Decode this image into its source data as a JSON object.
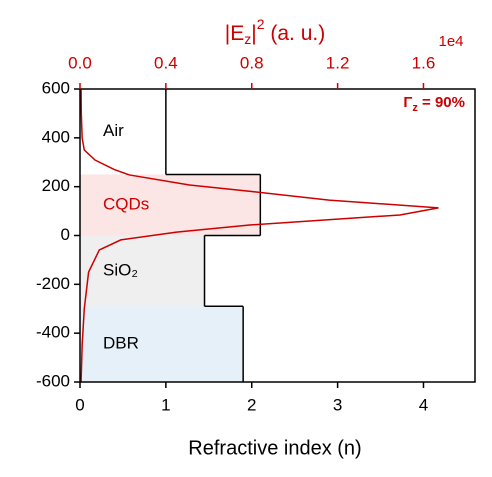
{
  "chart_data": {
    "type": "line",
    "xlabel": "Refractive index (n)",
    "x2label": [
      "|E",
      "z",
      "|",
      "2",
      " (a. u.)"
    ],
    "x2_offset": "1e4",
    "annotation": [
      "Γ",
      "z",
      " = 90%"
    ],
    "xlim": [
      0,
      4.6
    ],
    "xticks": [
      0,
      1,
      2,
      3,
      4
    ],
    "x2lim": [
      0,
      1.84
    ],
    "x2ticks": [
      {
        "value": 0,
        "label": "0.0"
      },
      0.4,
      0.8,
      1.2,
      1.6
    ],
    "ylim": [
      -600,
      600
    ],
    "yticks": [
      -600,
      -400,
      -200,
      0,
      200,
      400,
      600
    ],
    "profile_color": "#000000",
    "layers": [
      {
        "name": "Air",
        "n": 1,
        "range": [
          250,
          600
        ],
        "color": "#ffffff",
        "text_color": "#000000"
      },
      {
        "name": "CQDs",
        "n": 2.1,
        "range": [
          0,
          250
        ],
        "color": "#fbe5e5",
        "text_color": "#cc0000"
      },
      {
        "name": "SiO₂",
        "n": 1.45,
        "range": [
          -290,
          0
        ],
        "color": "#efefef",
        "text_color": "#000000"
      },
      {
        "name": "DBR",
        "n": 1.9,
        "range": [
          -600,
          -290
        ],
        "color": "#e6f0f8",
        "text_color": "#000000"
      }
    ],
    "series": [
      {
        "axis": "x2",
        "color": "#cc0000",
        "y": [
          600,
          500,
          400,
          350,
          309,
          270,
          248,
          207,
          180,
          145,
          113,
          84,
          43,
          14,
          -18,
          -59,
          -150,
          -300,
          -450,
          -600
        ],
        "values": [
          0.005,
          0.006,
          0.01,
          0.02,
          0.07,
          0.16,
          0.23,
          0.51,
          0.8,
          1.16,
          1.67,
          1.49,
          0.79,
          0.45,
          0.19,
          0.09,
          0.04,
          0.02,
          0.01,
          0.005
        ]
      }
    ]
  }
}
